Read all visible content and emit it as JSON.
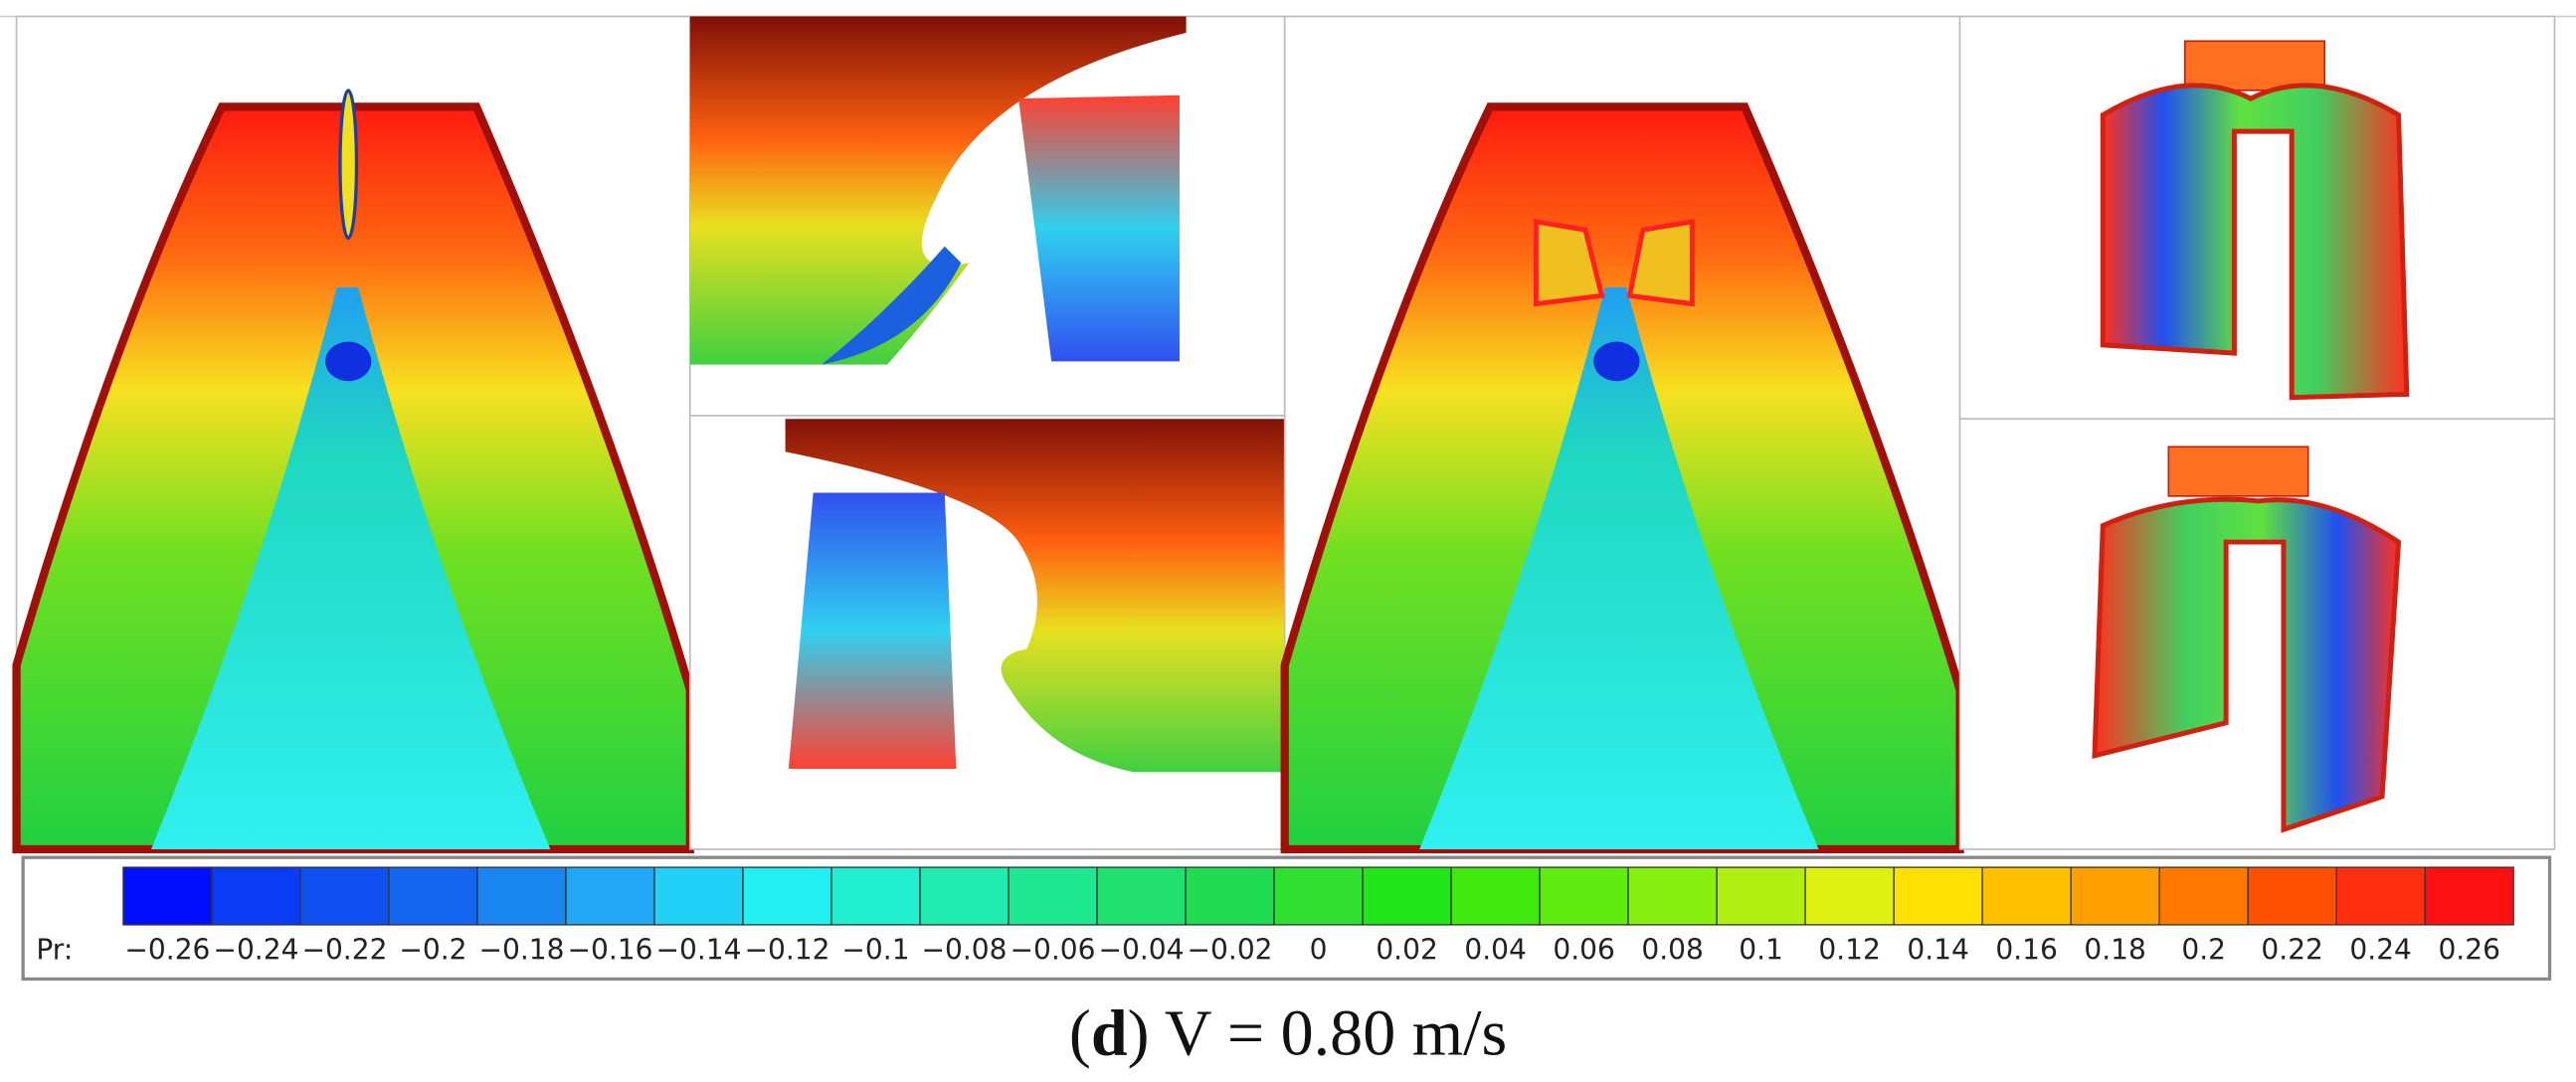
{
  "figure": {
    "colorbar": {
      "label": "Pr:",
      "ticks": [
        {
          "value": -0.26,
          "label": "−0.26"
        },
        {
          "value": -0.24,
          "label": "−0.24"
        },
        {
          "value": -0.22,
          "label": "−0.22"
        },
        {
          "value": -0.2,
          "label": "−0.2"
        },
        {
          "value": -0.18,
          "label": "−0.18"
        },
        {
          "value": -0.16,
          "label": "−0.16"
        },
        {
          "value": -0.14,
          "label": "−0.14"
        },
        {
          "value": -0.12,
          "label": "−0.12"
        },
        {
          "value": -0.1,
          "label": "−0.1"
        },
        {
          "value": -0.08,
          "label": "−0.08"
        },
        {
          "value": -0.06,
          "label": "−0.06"
        },
        {
          "value": -0.04,
          "label": "−0.04"
        },
        {
          "value": -0.02,
          "label": "−0.02"
        },
        0,
        0.02,
        0.04,
        0.06,
        0.08,
        0.1,
        0.12,
        0.14,
        0.16,
        0.18,
        0.2,
        0.22,
        0.24,
        0.26
      ],
      "colors": [
        "#0010ff",
        "#0a3cf5",
        "#1050f0",
        "#1466f0",
        "#1a86f2",
        "#20a8f5",
        "#20d0f5",
        "#20f0f0",
        "#20f0d0",
        "#20ecb0",
        "#20e890",
        "#20e070",
        "#20dc50",
        "#30e030",
        "#20e818",
        "#40e810",
        "#60ec10",
        "#88f010",
        "#b0f010",
        "#e0f010",
        "#ffe000",
        "#ffc000",
        "#ffa000",
        "#ff7800",
        "#ff5000",
        "#ff3010",
        "#ff1010"
      ]
    },
    "caption": {
      "prefix": "(",
      "letter": "d",
      "text": ") V = 0.80 m/s"
    }
  }
}
